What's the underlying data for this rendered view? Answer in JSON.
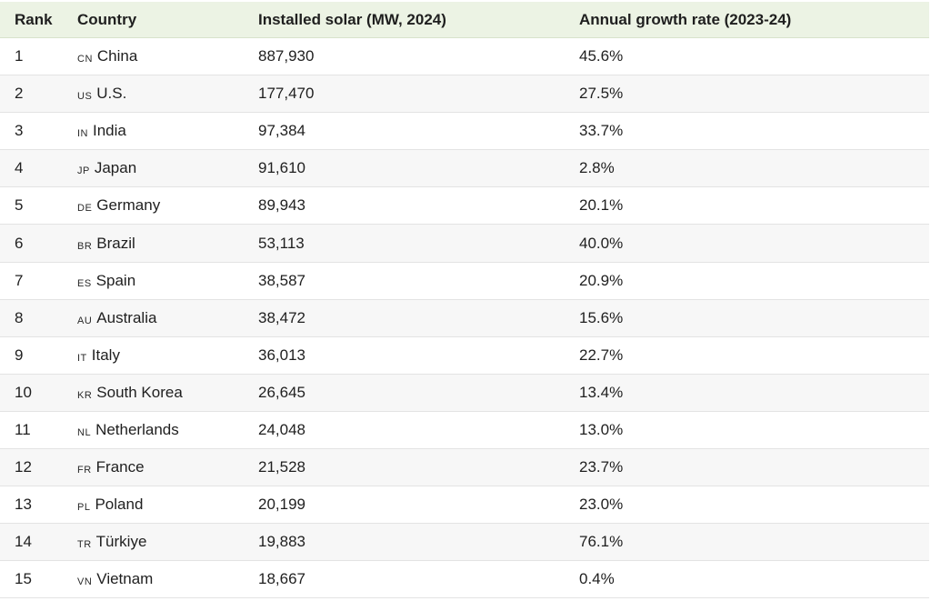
{
  "table": {
    "headers": {
      "rank": "Rank",
      "country": "Country",
      "solar": "Installed solar (MW, 2024)",
      "growth": "Annual growth rate (2023-24)"
    },
    "rows": [
      {
        "rank": "1",
        "code": "CN",
        "country": "China",
        "solar": "887,930",
        "growth": "45.6%"
      },
      {
        "rank": "2",
        "code": "US",
        "country": "U.S.",
        "solar": "177,470",
        "growth": "27.5%"
      },
      {
        "rank": "3",
        "code": "IN",
        "country": "India",
        "solar": "97,384",
        "growth": "33.7%"
      },
      {
        "rank": "4",
        "code": "JP",
        "country": "Japan",
        "solar": "91,610",
        "growth": "2.8%"
      },
      {
        "rank": "5",
        "code": "DE",
        "country": "Germany",
        "solar": "89,943",
        "growth": "20.1%"
      },
      {
        "rank": "6",
        "code": "BR",
        "country": "Brazil",
        "solar": "53,113",
        "growth": "40.0%"
      },
      {
        "rank": "7",
        "code": "ES",
        "country": "Spain",
        "solar": "38,587",
        "growth": "20.9%"
      },
      {
        "rank": "8",
        "code": "AU",
        "country": "Australia",
        "solar": "38,472",
        "growth": "15.6%"
      },
      {
        "rank": "9",
        "code": "IT",
        "country": "Italy",
        "solar": "36,013",
        "growth": "22.7%"
      },
      {
        "rank": "10",
        "code": "KR",
        "country": "South Korea",
        "solar": "26,645",
        "growth": "13.4%"
      },
      {
        "rank": "11",
        "code": "NL",
        "country": "Netherlands",
        "solar": "24,048",
        "growth": "13.0%"
      },
      {
        "rank": "12",
        "code": "FR",
        "country": "France",
        "solar": "21,528",
        "growth": "23.7%"
      },
      {
        "rank": "13",
        "code": "PL",
        "country": "Poland",
        "solar": "20,199",
        "growth": "23.0%"
      },
      {
        "rank": "14",
        "code": "TR",
        "country": "Türkiye",
        "solar": "19,883",
        "growth": "76.1%"
      },
      {
        "rank": "15",
        "code": "VN",
        "country": "Vietnam",
        "solar": "18,667",
        "growth": "0.4%"
      }
    ]
  },
  "colors": {
    "header_bg": "#ecf3e4",
    "alt_row_bg": "#f7f7f7",
    "border": "#e3e3e3"
  }
}
